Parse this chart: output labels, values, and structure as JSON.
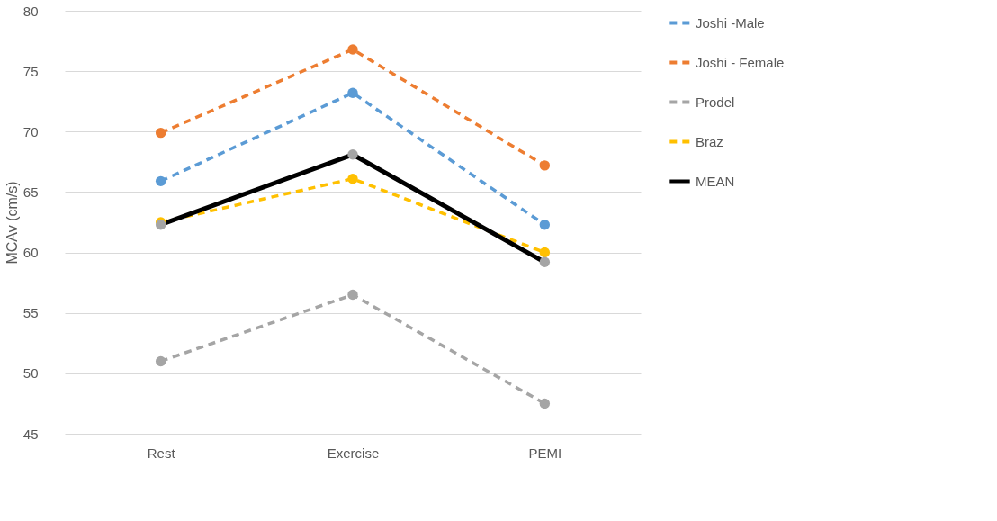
{
  "chart_data": {
    "type": "line",
    "ylabel": "MCAv (cm/s)",
    "categories": [
      "Rest",
      "Exercise",
      "PEMI"
    ],
    "series": [
      {
        "name": "Joshi -Male",
        "color": "#5b9bd5",
        "line_style": "dashed",
        "values": [
          65.9,
          73.2,
          62.3
        ]
      },
      {
        "name": "Joshi - Female",
        "color": "#ed7d31",
        "line_style": "dashed",
        "values": [
          69.9,
          76.8,
          67.2
        ]
      },
      {
        "name": "Prodel",
        "color": "#a5a5a5",
        "line_style": "dashed",
        "values": [
          51.0,
          56.5,
          47.5
        ]
      },
      {
        "name": "Braz",
        "color": "#ffc000",
        "line_style": "dashed",
        "values": [
          62.5,
          66.1,
          60.0
        ]
      },
      {
        "name": "MEAN",
        "color": "#000000",
        "colors": [
          "#a5a5a5",
          "#a5a5a5",
          "#a5a5a5"
        ],
        "line_style": "solid",
        "values": [
          62.3,
          68.1,
          59.2
        ]
      }
    ],
    "ylim": [
      45,
      80
    ],
    "yticks": [
      45,
      50,
      55,
      60,
      65,
      70,
      75,
      80
    ],
    "grid": "y",
    "legend": "right",
    "marker": "circle"
  }
}
